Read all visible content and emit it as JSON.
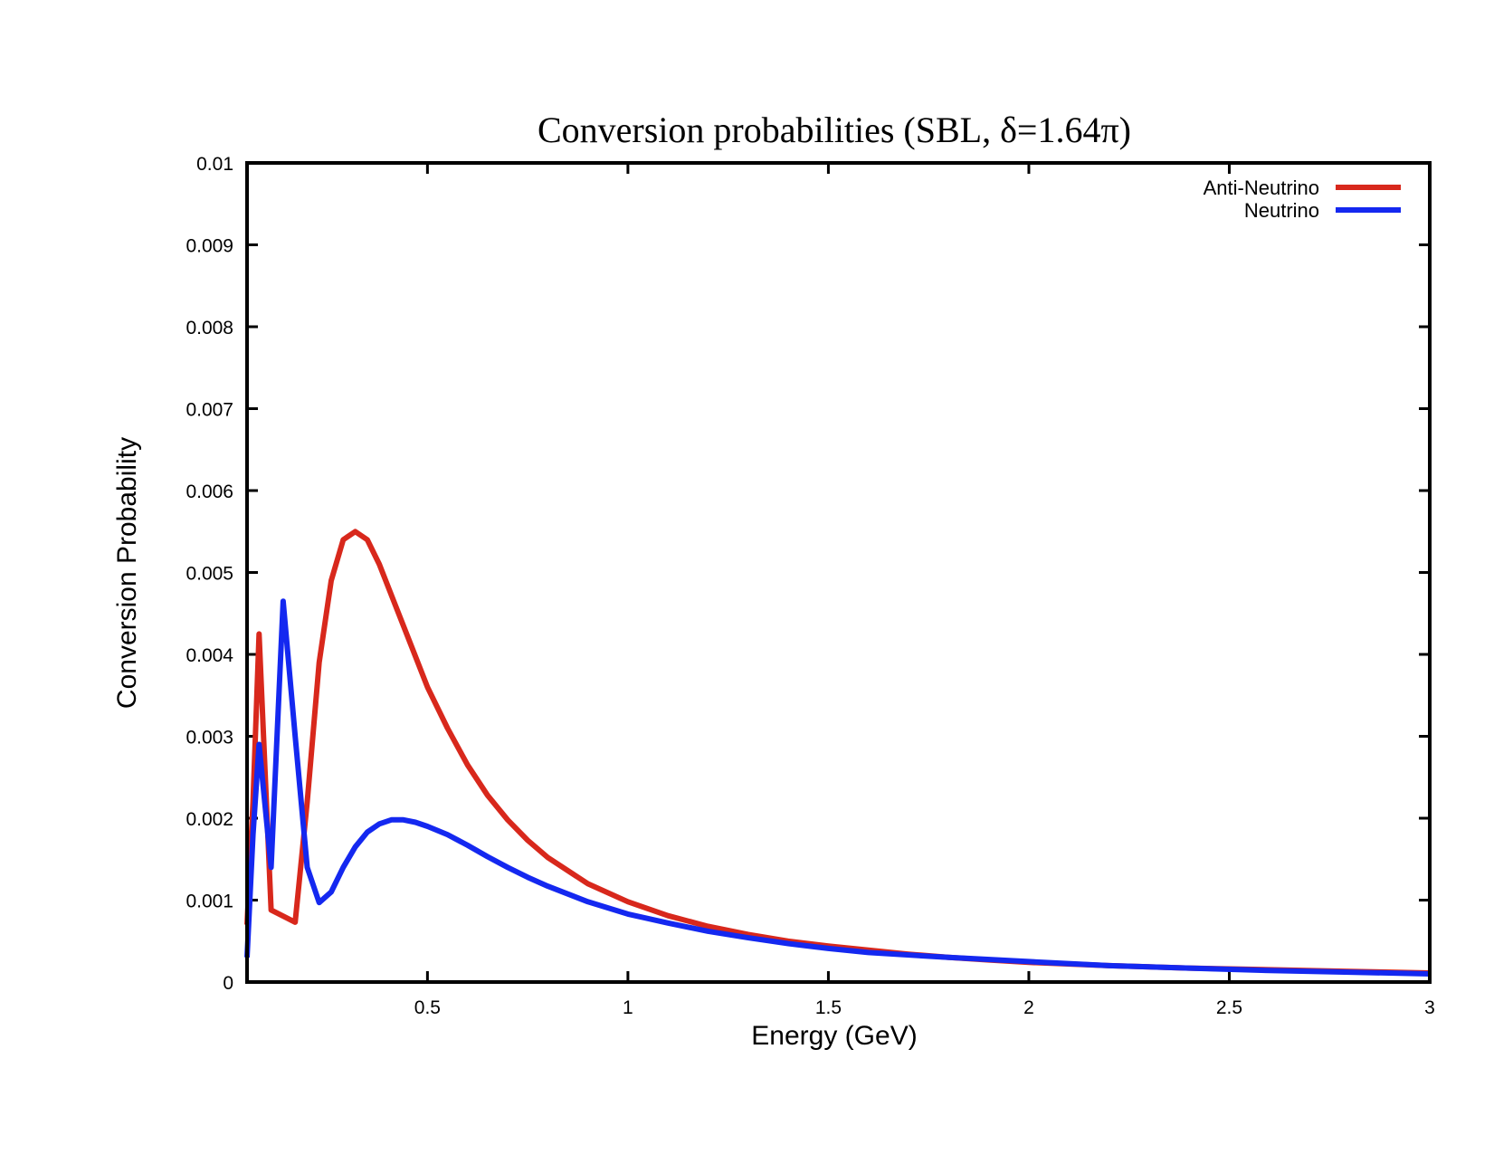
{
  "chart_data": {
    "type": "line",
    "title": "Conversion probabilities (SBL, δ=1.64π)",
    "xlabel": "Energy (GeV)",
    "ylabel": "Conversion Probability",
    "xlim": [
      0.05,
      3
    ],
    "ylim": [
      0,
      0.01
    ],
    "xticks": [
      0.5,
      1,
      1.5,
      2,
      2.5,
      3
    ],
    "xtick_labels": [
      "0.5",
      "1",
      "1.5",
      "2",
      "2.5",
      "3"
    ],
    "yticks": [
      0,
      0.001,
      0.002,
      0.003,
      0.004,
      0.005,
      0.006,
      0.007,
      0.008,
      0.009,
      0.01
    ],
    "ytick_labels": [
      "0",
      "0.001",
      "0.002",
      "0.003",
      "0.004",
      "0.005",
      "0.006",
      "0.007",
      "0.008",
      "0.009",
      "0.01"
    ],
    "grid": false,
    "legend_position": "top-right",
    "series": [
      {
        "name": "Anti-Neutrino",
        "color": "#d8281c",
        "x": [
          0.05,
          0.065,
          0.08,
          0.11,
          0.17,
          0.2,
          0.23,
          0.26,
          0.29,
          0.32,
          0.35,
          0.38,
          0.42,
          0.46,
          0.5,
          0.55,
          0.6,
          0.65,
          0.7,
          0.75,
          0.8,
          0.9,
          1.0,
          1.1,
          1.2,
          1.3,
          1.4,
          1.5,
          1.6,
          1.7,
          1.8,
          1.9,
          2.0,
          2.2,
          2.4,
          2.6,
          2.8,
          3.0
        ],
        "y": [
          0.0007,
          0.0022,
          0.00425,
          0.00088,
          0.00073,
          0.0022,
          0.0039,
          0.0049,
          0.0054,
          0.0055,
          0.0054,
          0.0051,
          0.0046,
          0.0041,
          0.0036,
          0.0031,
          0.00265,
          0.00228,
          0.00198,
          0.00173,
          0.00152,
          0.0012,
          0.00098,
          0.00081,
          0.00068,
          0.00058,
          0.0005,
          0.00044,
          0.00039,
          0.00034,
          0.0003,
          0.00027,
          0.00024,
          0.0002,
          0.00017,
          0.00015,
          0.00013,
          0.00011
        ]
      },
      {
        "name": "Neutrino",
        "color": "#1428f0",
        "x": [
          0.05,
          0.065,
          0.08,
          0.11,
          0.14,
          0.17,
          0.2,
          0.23,
          0.26,
          0.29,
          0.32,
          0.35,
          0.38,
          0.41,
          0.44,
          0.47,
          0.5,
          0.55,
          0.6,
          0.65,
          0.7,
          0.75,
          0.8,
          0.9,
          1.0,
          1.1,
          1.2,
          1.3,
          1.4,
          1.5,
          1.6,
          1.8,
          2.0,
          2.2,
          2.4,
          2.6,
          2.8,
          3.0
        ],
        "y": [
          0.0003,
          0.0018,
          0.0029,
          0.0014,
          0.00465,
          0.003,
          0.0014,
          0.00097,
          0.0011,
          0.0014,
          0.00165,
          0.00183,
          0.00193,
          0.00198,
          0.00198,
          0.00195,
          0.0019,
          0.0018,
          0.00167,
          0.00153,
          0.0014,
          0.00128,
          0.00117,
          0.00098,
          0.00083,
          0.00072,
          0.00062,
          0.00054,
          0.00047,
          0.00041,
          0.00036,
          0.0003,
          0.00025,
          0.0002,
          0.00017,
          0.00014,
          0.00012,
          0.0001
        ]
      }
    ]
  }
}
